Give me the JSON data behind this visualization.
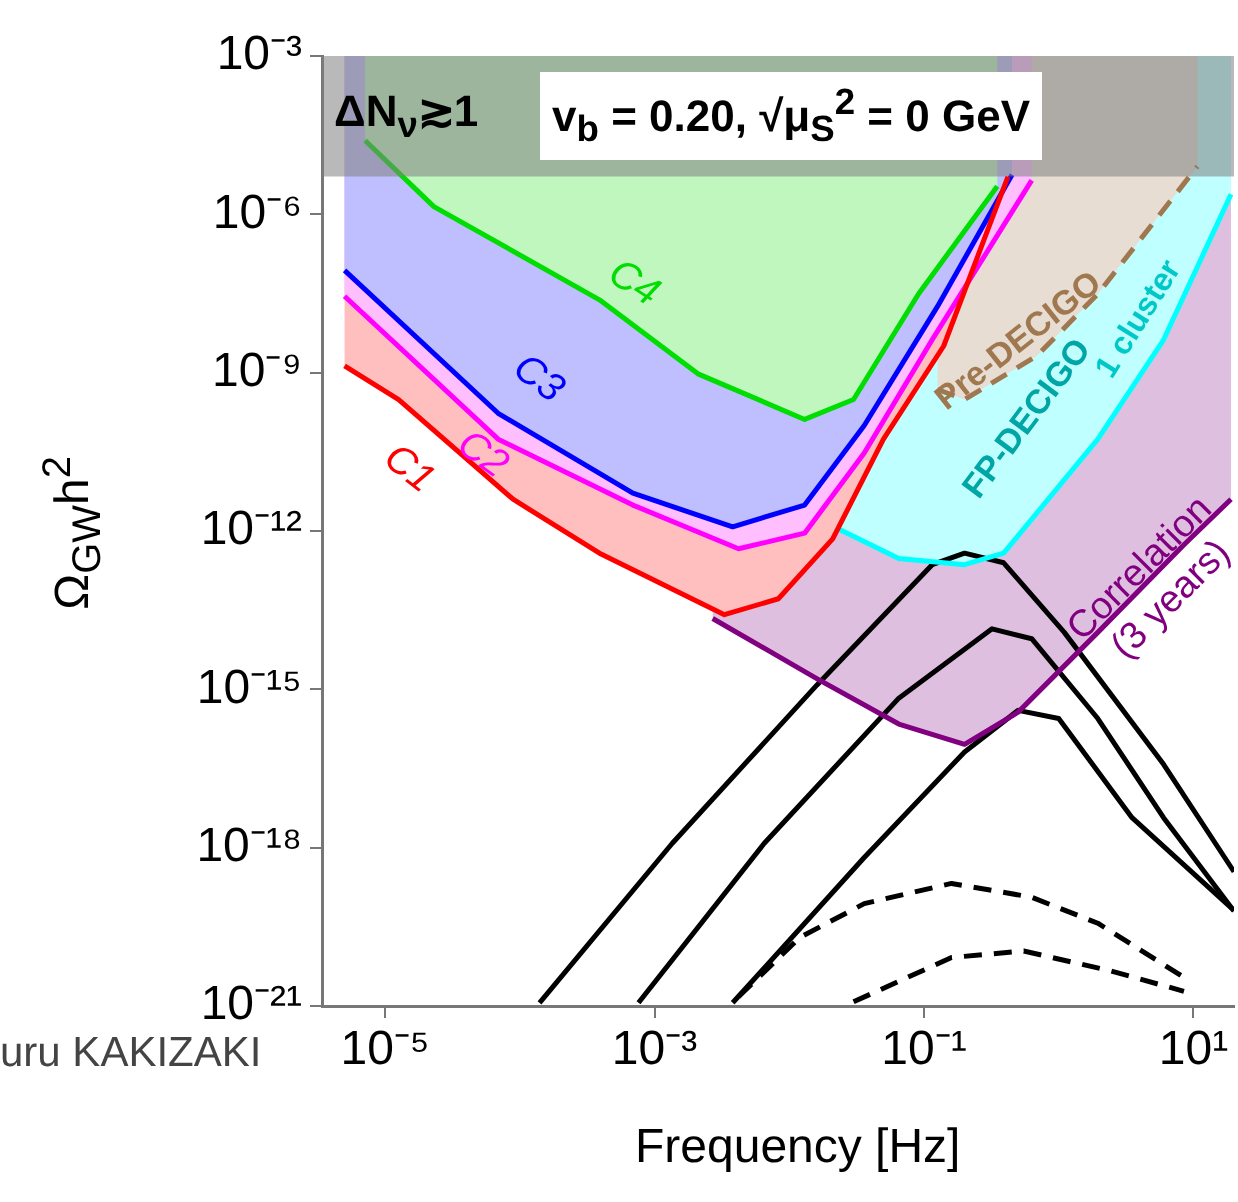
{
  "chart_data": {
    "type": "line",
    "title": "v$_{b}$ = 0.20, √μ$_{S}$$^{2}$ = 0 GeV",
    "xlabel": "Frequency [Hz]",
    "ylabel": "Ω$_{GW}$h$^{2}$",
    "annotations": [
      "1 cluster",
      "uru KAKIZAKI"
    ],
    "log": "xy",
    "marker": "none",
    "xlim": [
      3.4e-06,
      20
    ],
    "ylim": [
      1e-21,
      0.001
    ],
    "xticks": [
      {
        "value": 1e-05,
        "label": "10⁻⁵"
      },
      {
        "value": 0.001,
        "label": "10⁻³"
      },
      {
        "value": 0.1,
        "label": "10⁻¹"
      },
      {
        "value": 10,
        "label": "10¹"
      }
    ],
    "yticks": [
      {
        "value": 1e-21,
        "label": "10⁻²¹"
      },
      {
        "value": 1e-18,
        "label": "10⁻¹⁸"
      },
      {
        "value": 1e-15,
        "label": "10⁻¹⁵"
      },
      {
        "value": 1e-12,
        "label": "10⁻¹²"
      },
      {
        "value": 1e-09,
        "label": "10⁻⁹"
      },
      {
        "value": 1e-06,
        "label": "10⁻⁶"
      },
      {
        "value": 0.001,
        "label": "10⁻³"
      }
    ],
    "bands": [
      {
        "axis": "y",
        "from": 5.2e-06,
        "to": 0.001,
        "label": "ΔN$_{ν}$≳1",
        "color": "#808080"
      }
    ],
    "series": [
      {
        "name": "C1",
        "type": "line",
        "color": "#ff0000",
        "x": [
          5e-06,
          1.26e-05,
          8.9e-05,
          0.00039,
          0.0033,
          0.0083,
          0.021,
          0.05,
          0.14,
          0.42
        ],
        "values": [
          1.35e-09,
          3.1e-10,
          4e-12,
          3.8e-13,
          2.6e-14,
          5.2e-14,
          7.1e-13,
          5.5e-11,
          3.2e-09,
          5.2e-06
        ],
        "lower": [
          1.35e-09,
          3.1e-10,
          4e-12,
          3.8e-13,
          2.6e-14,
          5.2e-14,
          7.1e-13,
          5.5e-11,
          3.2e-09,
          5.2e-06
        ],
        "upper": [
          0.001,
          0.001,
          0.001,
          0.001,
          0.001,
          0.001,
          0.001,
          0.001,
          0.001,
          0.001
        ]
      },
      {
        "name": "C2",
        "type": "line",
        "color": "#ff00ff",
        "x": [
          5e-06,
          6.9e-05,
          0.00069,
          0.0042,
          0.013,
          0.036,
          0.115,
          0.63
        ],
        "values": [
          2.8e-08,
          5.5e-11,
          3.1e-12,
          4.6e-13,
          9.1e-13,
          3e-11,
          4.2e-09,
          4.4e-06
        ],
        "lower": [
          2.8e-08,
          5.5e-11,
          3.1e-12,
          4.6e-13,
          9.1e-13,
          3e-11,
          4.2e-09,
          4.4e-06
        ],
        "upper": [
          0.001,
          0.001,
          0.001,
          0.001,
          0.001,
          0.001,
          0.001,
          0.001
        ]
      },
      {
        "name": "C3",
        "type": "line",
        "color": "#0000ff",
        "x": [
          5e-06,
          6.9e-05,
          0.00069,
          0.0038,
          0.013,
          0.036,
          0.126,
          0.45
        ],
        "values": [
          8.7e-08,
          1.7e-10,
          5.2e-12,
          1.2e-12,
          3.1e-12,
          1e-10,
          1.8e-08,
          5.6e-06
        ],
        "lower": [
          8.7e-08,
          1.7e-10,
          5.2e-12,
          1.2e-12,
          3.1e-12,
          1e-10,
          1.8e-08,
          5.6e-06
        ],
        "upper": [
          0.001,
          0.001,
          0.001,
          0.001,
          0.001,
          0.001,
          0.001,
          0.001
        ]
      },
      {
        "name": "C4",
        "type": "line",
        "color": "#00dd00",
        "x": [
          7.1e-06,
          2.3e-05,
          0.00039,
          0.0021,
          0.013,
          0.03,
          0.091,
          0.35
        ],
        "values": [
          2.5e-05,
          1.4e-06,
          2.4e-08,
          9.5e-10,
          1.3e-10,
          3.1e-10,
          3.1e-08,
          3.4e-06
        ],
        "lower": [
          2.5e-05,
          1.4e-06,
          2.4e-08,
          9.5e-10,
          1.3e-10,
          3.1e-10,
          3.1e-08,
          3.4e-06
        ],
        "upper": [
          0.001,
          0.001,
          0.001,
          0.001,
          0.001,
          0.001,
          0.001,
          0.001
        ]
      },
      {
        "name": "Pre-DECIGO",
        "type": "line",
        "line_style": "dashed",
        "color": "#a07850",
        "x": [
          0.126,
          0.2,
          0.69,
          1.95,
          10.7
        ],
        "values": [
          4.8e-10,
          3.1e-10,
          2.1e-09,
          3.1e-08,
          8.1e-06
        ],
        "lower": [
          4.8e-10,
          3.1e-10,
          2.1e-09,
          3.1e-08,
          8.1e-06
        ],
        "upper": [
          0.001,
          0.001,
          0.001,
          0.001,
          0.001
        ]
      },
      {
        "name": "FP-DECIGO",
        "type": "line",
        "color": "#00ffff",
        "x": [
          0.023,
          0.065,
          0.2,
          0.39,
          1.95,
          6,
          19
        ],
        "values": [
          1.1e-12,
          3e-13,
          2.3e-13,
          3.8e-13,
          5.5e-11,
          4.2e-09,
          2.4e-06
        ],
        "lower": [
          1.1e-12,
          3e-13,
          2.3e-13,
          3.8e-13,
          5.5e-11,
          4.2e-09,
          2.4e-06
        ],
        "upper": [
          0.001,
          0.001,
          0.001,
          0.001,
          0.001,
          0.001,
          0.001
        ]
      },
      {
        "name": "Correlation (3 years)",
        "type": "line",
        "color": "#800080",
        "x": [
          0.0027,
          0.016,
          0.065,
          0.2,
          0.5,
          1.95,
          8.5,
          19
        ],
        "values": [
          2.2e-14,
          1.6e-15,
          2.2e-16,
          9.1e-17,
          3.7e-16,
          1.2e-14,
          5.5e-13,
          4e-12
        ],
        "lower": [
          2.2e-14,
          1.6e-15,
          2.2e-16,
          9.1e-17,
          3.7e-16,
          1.2e-14,
          5.5e-13,
          4e-12
        ],
        "upper": [
          0.001,
          0.001,
          0.001,
          0.001,
          0.001,
          0.001,
          0.001,
          0.001
        ]
      },
      {
        "type": "line",
        "color": "#000000",
        "x": [
          0.00014,
          0.00135,
          0.016,
          0.115,
          0.2,
          0.39,
          1.1,
          6,
          20
        ],
        "values": [
          1.15e-21,
          1.2e-18,
          1.2e-15,
          2.3e-13,
          3.8e-13,
          2.5e-13,
          1.2e-14,
          3.8e-17,
          3.5e-19
        ]
      },
      {
        "type": "line",
        "color": "#000000",
        "x": [
          0.00076,
          0.0065,
          0.065,
          0.32,
          0.63,
          1.95,
          6,
          20
        ],
        "values": [
          1.15e-21,
          1.2e-18,
          6.8e-16,
          1.4e-14,
          9.1e-15,
          2.8e-16,
          3.7e-18,
          6.3e-20
        ]
      },
      {
        "type": "line",
        "color": "#000000",
        "x": [
          0.0038,
          0.036,
          0.2,
          0.5,
          1,
          3.5,
          20
        ],
        "values": [
          1.15e-21,
          6.5e-19,
          6.5e-17,
          4e-16,
          2.8e-16,
          3.7e-18,
          6.5e-20
        ]
      },
      {
        "type": "line",
        "line_style": "dashed",
        "color": "#000000",
        "x": [
          0.0042,
          0.012,
          0.036,
          0.16,
          0.63,
          1.95,
          8.5
        ],
        "values": [
          1.5e-21,
          2e-20,
          8.7e-20,
          2.1e-19,
          1.15e-19,
          3.7e-20,
          3.5e-21
        ]
      },
      {
        "type": "line",
        "line_style": "dashed",
        "color": "#000000",
        "x": [
          0.03,
          0.16,
          0.55,
          2.45,
          8.5
        ],
        "values": [
          1.2e-21,
          8.3e-21,
          1.1e-20,
          4.6e-21,
          1.9e-21
        ]
      }
    ]
  }
}
